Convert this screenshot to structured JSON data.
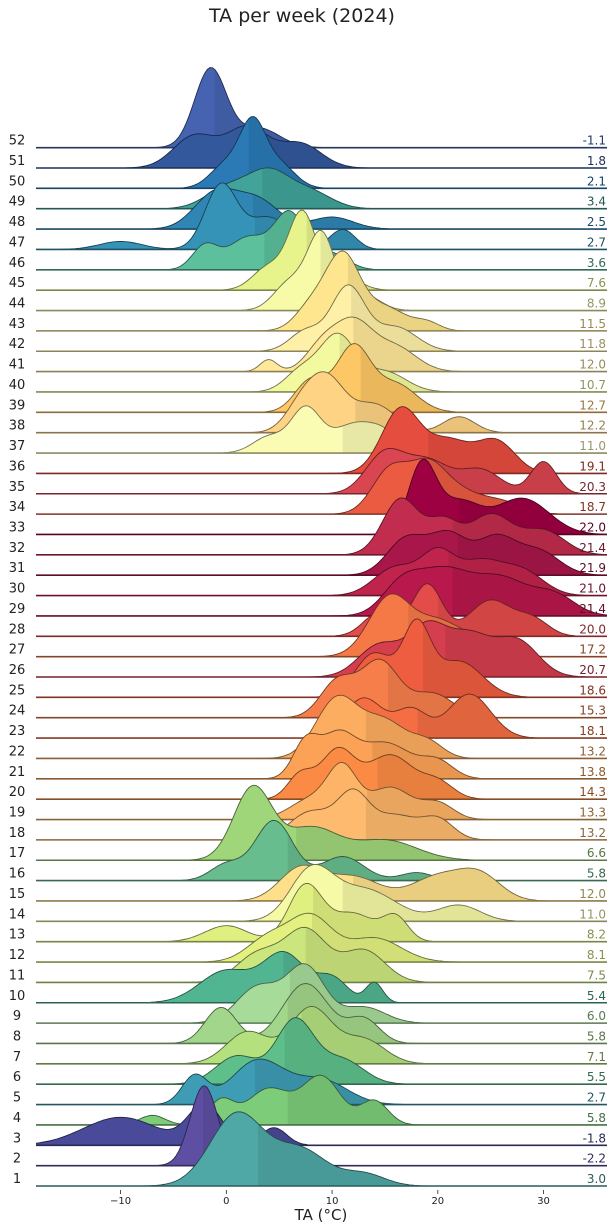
{
  "chart_data": {
    "type": "ridgeline",
    "title": "TA per week (2024)",
    "xlabel": "TA (°C)",
    "xlim": [
      -18,
      36
    ],
    "xticks": [
      -10,
      0,
      10,
      20,
      30
    ],
    "xtick_labels": [
      "−10",
      "0",
      "10",
      "20",
      "30"
    ],
    "weeks": [
      {
        "week": "1",
        "mean": "3.0",
        "color": "#4fa8a6",
        "modes": [
          [
            1,
            2.5,
            0.9
          ],
          [
            7,
            2.5,
            0.45
          ],
          [
            13,
            2,
            0.15
          ]
        ]
      },
      {
        "week": "2",
        "mean": "-2.2",
        "color": "#5e4fa2",
        "modes": [
          [
            -2.1,
            1.3,
            1.0
          ]
        ]
      },
      {
        "week": "3",
        "mean": "-1.8",
        "color": "#4a4a9a",
        "modes": [
          [
            -10,
            3.5,
            0.35
          ],
          [
            -2,
            1.6,
            0.5
          ],
          [
            4.5,
            1.2,
            0.22
          ]
        ]
      },
      {
        "week": "4",
        "mean": "5.8",
        "color": "#7ccc7a",
        "modes": [
          [
            -7,
            1.2,
            0.12
          ],
          [
            -0.5,
            1.2,
            0.3
          ],
          [
            4,
            2,
            0.45
          ],
          [
            9,
            1.8,
            0.6
          ],
          [
            14,
            1.3,
            0.3
          ]
        ]
      },
      {
        "week": "5",
        "mean": "2.7",
        "color": "#3e9db5",
        "modes": [
          [
            -3,
            1.2,
            0.35
          ],
          [
            3,
            2.5,
            0.55
          ],
          [
            9,
            2.5,
            0.3
          ]
        ]
      },
      {
        "week": "6",
        "mean": "5.5",
        "color": "#5fbf8a",
        "modes": [
          [
            1,
            2,
            0.35
          ],
          [
            6.5,
            1.8,
            0.8
          ],
          [
            11,
            2,
            0.3
          ]
        ]
      },
      {
        "week": "7",
        "mean": "7.1",
        "color": "#b5e07e",
        "modes": [
          [
            2,
            2,
            0.4
          ],
          [
            8,
            2,
            0.7
          ],
          [
            13,
            2,
            0.3
          ]
        ]
      },
      {
        "week": "8",
        "mean": "5.8",
        "color": "#a2d68a",
        "modes": [
          [
            -0.5,
            1.5,
            0.45
          ],
          [
            7.5,
            2.2,
            0.75
          ],
          [
            13,
            1.5,
            0.3
          ]
        ]
      },
      {
        "week": "9",
        "mean": "6.0",
        "color": "#a6db9a",
        "modes": [
          [
            3,
            2,
            0.45
          ],
          [
            7.5,
            1.8,
            0.7
          ],
          [
            13,
            2,
            0.2
          ]
        ]
      },
      {
        "week": "10",
        "mean": "5.4",
        "color": "#52b592",
        "modes": [
          [
            0,
            2.5,
            0.4
          ],
          [
            5.5,
            2,
            0.6
          ],
          [
            10,
            1.5,
            0.3
          ],
          [
            14,
            0.8,
            0.25
          ]
        ]
      },
      {
        "week": "11",
        "mean": "7.5",
        "color": "#cce67e",
        "modes": [
          [
            3,
            2,
            0.35
          ],
          [
            7.5,
            2,
            0.65
          ],
          [
            13,
            2,
            0.4
          ]
        ]
      },
      {
        "week": "12",
        "mean": "8.1",
        "color": "#e4f180",
        "modes": [
          [
            4,
            2,
            0.3
          ],
          [
            8,
            2,
            0.55
          ],
          [
            14,
            2.5,
            0.3
          ]
        ]
      },
      {
        "week": "13",
        "mean": "8.2",
        "color": "#e0f080",
        "modes": [
          [
            0,
            2,
            0.2
          ],
          [
            7.5,
            1.6,
            0.7
          ],
          [
            12,
            2,
            0.35
          ],
          [
            16,
            1.2,
            0.3
          ]
        ]
      },
      {
        "week": "14",
        "mean": "11.0",
        "color": "#f6f9a5",
        "modes": [
          [
            8,
            2,
            0.6
          ],
          [
            13,
            3,
            0.4
          ],
          [
            22,
            2,
            0.2
          ]
        ]
      },
      {
        "week": "15",
        "mean": "12.0",
        "color": "#fee08b",
        "modes": [
          [
            7,
            2,
            0.4
          ],
          [
            12,
            2.5,
            0.3
          ],
          [
            20,
            2.5,
            0.3
          ],
          [
            24,
            2,
            0.3
          ]
        ]
      },
      {
        "week": "16",
        "mean": "5.8",
        "color": "#68bd8f",
        "modes": [
          [
            0,
            1.5,
            0.2
          ],
          [
            4.5,
            1.8,
            0.75
          ],
          [
            11,
            2,
            0.3
          ],
          [
            18,
            1.5,
            0.1
          ]
        ]
      },
      {
        "week": "17",
        "mean": "6.6",
        "color": "#a0d67a",
        "modes": [
          [
            2.5,
            1.8,
            0.9
          ],
          [
            8,
            2.5,
            0.4
          ],
          [
            15,
            3,
            0.25
          ]
        ]
      },
      {
        "week": "18",
        "mean": "13.2",
        "color": "#feba6e",
        "modes": [
          [
            8,
            2,
            0.35
          ],
          [
            12,
            1.5,
            0.55
          ],
          [
            16,
            2,
            0.3
          ],
          [
            20,
            1.5,
            0.25
          ]
        ]
      },
      {
        "week": "19",
        "mean": "13.3",
        "color": "#fdb466",
        "modes": [
          [
            8,
            2,
            0.25
          ],
          [
            11,
            1.4,
            0.6
          ],
          [
            15.5,
            2,
            0.4
          ],
          [
            20,
            1.5,
            0.2
          ]
        ]
      },
      {
        "week": "20",
        "mean": "14.3",
        "color": "#fb8a45",
        "modes": [
          [
            7,
            1.2,
            0.3
          ],
          [
            10.5,
            1.6,
            0.6
          ],
          [
            15.5,
            2.2,
            0.55
          ],
          [
            20,
            1.5,
            0.2
          ]
        ]
      },
      {
        "week": "21",
        "mean": "13.8",
        "color": "#fca257",
        "modes": [
          [
            7.5,
            1.2,
            0.45
          ],
          [
            10.5,
            1.6,
            0.5
          ],
          [
            15,
            2.5,
            0.45
          ],
          [
            20,
            1.5,
            0.2
          ]
        ]
      },
      {
        "week": "22",
        "mean": "13.2",
        "color": "#fdad60",
        "modes": [
          [
            10.5,
            2,
            0.75
          ],
          [
            15,
            2,
            0.45
          ],
          [
            19,
            1.5,
            0.2
          ]
        ]
      },
      {
        "week": "23",
        "mean": "18.1",
        "color": "#f46d43",
        "modes": [
          [
            13,
            1.8,
            0.5
          ],
          [
            17.5,
            1.5,
            0.35
          ],
          [
            23,
            2,
            0.55
          ]
        ]
      },
      {
        "week": "24",
        "mean": "15.3",
        "color": "#f67e4b",
        "modes": [
          [
            10.5,
            1.6,
            0.45
          ],
          [
            14.5,
            1.8,
            0.7
          ],
          [
            19.5,
            2,
            0.3
          ]
        ]
      },
      {
        "week": "25",
        "mean": "18.6",
        "color": "#ee5d3f",
        "modes": [
          [
            14,
            1.8,
            0.55
          ],
          [
            18,
            1.3,
            0.85
          ],
          [
            22,
            2.2,
            0.45
          ]
        ]
      },
      {
        "week": "26",
        "mean": "20.7",
        "color": "#d53e4f",
        "modes": [
          [
            14.5,
            2,
            0.4
          ],
          [
            19,
            1.8,
            0.6
          ],
          [
            23,
            2,
            0.5
          ],
          [
            27.5,
            2,
            0.45
          ]
        ]
      },
      {
        "week": "27",
        "mean": "17.2",
        "color": "#f57947",
        "modes": [
          [
            15.5,
            2,
            0.75
          ],
          [
            20,
            2,
            0.4
          ],
          [
            24,
            2,
            0.2
          ]
        ]
      },
      {
        "week": "28",
        "mean": "20.0",
        "color": "#e34c4a",
        "modes": [
          [
            14.5,
            1.5,
            0.3
          ],
          [
            19,
            1.4,
            0.65
          ],
          [
            25,
            2,
            0.45
          ],
          [
            29,
            1.5,
            0.2
          ]
        ]
      },
      {
        "week": "29",
        "mean": "21.4",
        "color": "#b8184b",
        "modes": [
          [
            16.5,
            1.8,
            0.35
          ],
          [
            20.5,
            2.5,
            0.55
          ],
          [
            26,
            2.5,
            0.45
          ],
          [
            31,
            2,
            0.25
          ]
        ]
      },
      {
        "week": "30",
        "mean": "21.0",
        "color": "#c0244d",
        "modes": [
          [
            16,
            2,
            0.35
          ],
          [
            20,
            1.6,
            0.5
          ],
          [
            24,
            2,
            0.4
          ],
          [
            28,
            2,
            0.3
          ]
        ]
      },
      {
        "week": "31",
        "mean": "21.9",
        "color": "#a8164a",
        "modes": [
          [
            17,
            1.8,
            0.45
          ],
          [
            21,
            1.8,
            0.5
          ],
          [
            25.5,
            1.8,
            0.45
          ],
          [
            29.5,
            2,
            0.3
          ]
        ]
      },
      {
        "week": "32",
        "mean": "21.4",
        "color": "#c22d4f",
        "modes": [
          [
            16.5,
            1.7,
            0.7
          ],
          [
            20.5,
            1.5,
            0.4
          ],
          [
            25,
            2,
            0.5
          ],
          [
            30,
            2,
            0.3
          ]
        ]
      },
      {
        "week": "33",
        "mean": "22.0",
        "color": "#9e0142",
        "modes": [
          [
            18.5,
            1.3,
            0.85
          ],
          [
            22,
            2,
            0.4
          ],
          [
            28,
            2.5,
            0.45
          ]
        ]
      },
      {
        "week": "34",
        "mean": "18.7",
        "color": "#ea5b42",
        "modes": [
          [
            15.5,
            1.7,
            0.55
          ],
          [
            19,
            1.7,
            0.55
          ],
          [
            22,
            2,
            0.25
          ],
          [
            26,
            2,
            0.15
          ]
        ]
      },
      {
        "week": "35",
        "mean": "20.3",
        "color": "#d94551",
        "modes": [
          [
            15,
            1.8,
            0.5
          ],
          [
            19,
            2,
            0.4
          ],
          [
            24,
            2,
            0.3
          ],
          [
            30,
            1.2,
            0.4
          ]
        ]
      },
      {
        "week": "36",
        "mean": "19.1",
        "color": "#e54d3e",
        "modes": [
          [
            16.5,
            1.8,
            0.8
          ],
          [
            21,
            2,
            0.4
          ],
          [
            25.5,
            1.8,
            0.4
          ]
        ]
      },
      {
        "week": "37",
        "mean": "11.0",
        "color": "#fbfcb3",
        "modes": [
          [
            4,
            1.5,
            0.2
          ],
          [
            7.5,
            1.4,
            0.55
          ],
          [
            12,
            2,
            0.35
          ],
          [
            15,
            1.5,
            0.2
          ]
        ]
      },
      {
        "week": "38",
        "mean": "12.2",
        "color": "#fed384",
        "modes": [
          [
            7,
            1.5,
            0.3
          ],
          [
            9.5,
            1.7,
            0.65
          ],
          [
            14,
            2,
            0.35
          ],
          [
            22,
            1.5,
            0.2
          ]
        ]
      },
      {
        "week": "39",
        "mean": "12.7",
        "color": "#fec765",
        "modes": [
          [
            8,
            1.5,
            0.4
          ],
          [
            12,
            1.6,
            0.8
          ],
          [
            16,
            2,
            0.35
          ]
        ]
      },
      {
        "week": "40",
        "mean": "10.7",
        "color": "#f3f99e",
        "modes": [
          [
            7,
            1.5,
            0.25
          ],
          [
            10.5,
            1.7,
            0.7
          ],
          [
            15,
            2,
            0.25
          ]
        ]
      },
      {
        "week": "41",
        "mean": "12.0",
        "color": "#ffe89a",
        "modes": [
          [
            4,
            0.8,
            0.15
          ],
          [
            9,
            1.5,
            0.3
          ],
          [
            12,
            1.8,
            0.6
          ],
          [
            16,
            2,
            0.3
          ]
        ]
      },
      {
        "week": "42",
        "mean": "11.8",
        "color": "#fff0a8",
        "modes": [
          [
            7.5,
            1.5,
            0.25
          ],
          [
            11.5,
            1.6,
            0.8
          ],
          [
            16,
            2,
            0.3
          ]
        ]
      },
      {
        "week": "43",
        "mean": "11.5",
        "color": "#fee68f",
        "modes": [
          [
            8,
            1.5,
            0.3
          ],
          [
            11,
            1.6,
            0.95
          ],
          [
            15,
            2,
            0.3
          ],
          [
            19,
            1.2,
            0.1
          ]
        ]
      },
      {
        "week": "44",
        "mean": "8.9",
        "color": "#f7fba8",
        "modes": [
          [
            6,
            1.5,
            0.35
          ],
          [
            9,
            1.3,
            0.95
          ],
          [
            13,
            1.5,
            0.2
          ]
        ]
      },
      {
        "week": "45",
        "mean": "7.6",
        "color": "#e6f48b",
        "modes": [
          [
            4,
            1.5,
            0.3
          ],
          [
            7.2,
            1.3,
            1.0
          ],
          [
            11,
            1.5,
            0.2
          ]
        ]
      },
      {
        "week": "46",
        "mean": "3.6",
        "color": "#5cc09d",
        "modes": [
          [
            -2,
            1.2,
            0.3
          ],
          [
            2,
            1.8,
            0.4
          ],
          [
            6,
            1.5,
            0.7
          ],
          [
            10,
            1.5,
            0.2
          ]
        ]
      },
      {
        "week": "47",
        "mean": "2.7",
        "color": "#3693b8",
        "modes": [
          [
            -10,
            2,
            0.1
          ],
          [
            -0.5,
            1.5,
            0.8
          ],
          [
            4,
            2,
            0.4
          ],
          [
            11,
            1.2,
            0.25
          ]
        ]
      },
      {
        "week": "48",
        "mean": "2.5",
        "color": "#2f86b5",
        "modes": [
          [
            -1,
            2,
            0.45
          ],
          [
            3,
            2,
            0.35
          ],
          [
            10,
            2,
            0.15
          ]
        ]
      },
      {
        "week": "49",
        "mean": "3.4",
        "color": "#41a39a",
        "modes": [
          [
            0,
            2,
            0.25
          ],
          [
            4,
            2,
            0.45
          ],
          [
            8,
            2,
            0.2
          ]
        ]
      },
      {
        "week": "50",
        "mean": "2.1",
        "color": "#2b7ab6",
        "modes": [
          [
            0,
            1.5,
            0.3
          ],
          [
            2.5,
            1.2,
            0.75
          ],
          [
            5,
            1.5,
            0.3
          ]
        ]
      },
      {
        "week": "51",
        "mean": "1.8",
        "color": "#34589c",
        "modes": [
          [
            -3,
            2,
            0.4
          ],
          [
            2,
            2,
            0.5
          ],
          [
            7,
            2,
            0.3
          ]
        ]
      },
      {
        "week": "52",
        "mean": "-1.1",
        "color": "#4563b0",
        "modes": [
          [
            -1.5,
            1.5,
            1.0
          ],
          [
            3,
            2,
            0.25
          ]
        ]
      }
    ]
  }
}
